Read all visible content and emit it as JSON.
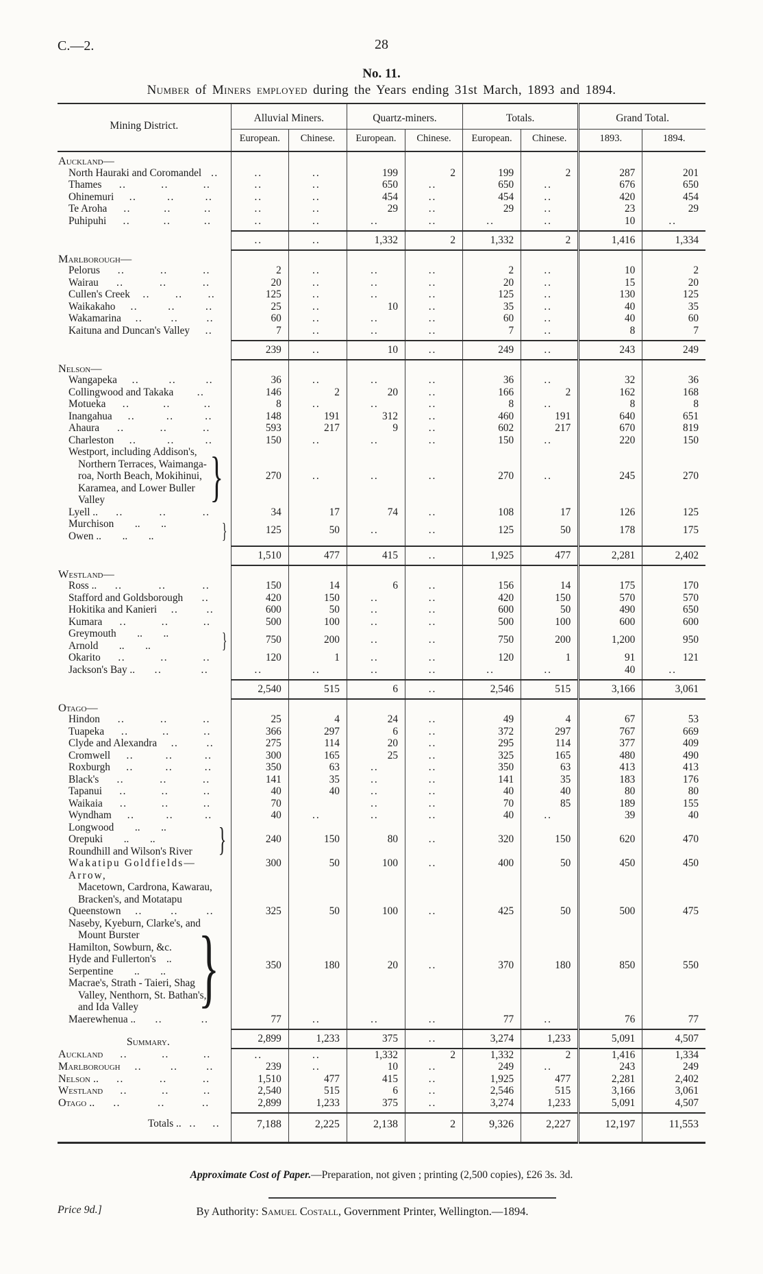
{
  "page": {
    "doc_ref": "C.—2.",
    "page_number": "28",
    "table_no": "No. 11.",
    "subtitle_parts": [
      {
        "text": "Number",
        "sc": true
      },
      {
        "text": " of ",
        "sc": false
      },
      {
        "text": "Miners employed",
        "sc": true
      },
      {
        "text": " during the Years ending 31st March, 1893 and 1894.",
        "sc": false
      }
    ]
  },
  "glyphs": {
    "leader_dots": "..",
    "brace": "}"
  },
  "table": {
    "district_header": "Mining District.",
    "groups": [
      {
        "label": "Alluvial Miners.",
        "cols": [
          "European.",
          "Chinese."
        ]
      },
      {
        "label": "Quartz-miners.",
        "cols": [
          "European.",
          "Chinese."
        ]
      },
      {
        "label": "Totals.",
        "cols": [
          "European.",
          "Chinese."
        ]
      },
      {
        "label": "Grand Total.",
        "cols": [
          "1893.",
          "1894."
        ]
      }
    ],
    "sections": [
      {
        "name": "Auckland—",
        "rows": [
          {
            "label": "North Hauraki and Coromandel",
            "dots": 1,
            "cells": [
              "..",
              "..",
              "199",
              "2",
              "199",
              "2",
              "287",
              "201"
            ]
          },
          {
            "label": "Thames",
            "dots": 3,
            "cells": [
              "..",
              "..",
              "650",
              "..",
              "650",
              "..",
              "676",
              "650"
            ]
          },
          {
            "label": "Ohinemuri",
            "dots": 3,
            "cells": [
              "..",
              "..",
              "454",
              "..",
              "454",
              "..",
              "420",
              "454"
            ]
          },
          {
            "label": "Te Aroha",
            "dots": 3,
            "cells": [
              "..",
              "..",
              "29",
              "..",
              "29",
              "..",
              "23",
              "29"
            ]
          },
          {
            "label": "Puhipuhi",
            "dots": 3,
            "cells": [
              "..",
              "..",
              "..",
              "..",
              "..",
              "..",
              "10",
              ".."
            ]
          }
        ],
        "subtotal": [
          "..",
          "..",
          "1,332",
          "2",
          "1,332",
          "2",
          "1,416",
          "1,334"
        ]
      },
      {
        "name": "Marlborough—",
        "rows": [
          {
            "label": "Pelorus",
            "dots": 3,
            "cells": [
              "2",
              "..",
              "..",
              "..",
              "2",
              "..",
              "10",
              "2"
            ]
          },
          {
            "label": "Wairau",
            "dots": 3,
            "cells": [
              "20",
              "..",
              "..",
              "..",
              "20",
              "..",
              "15",
              "20"
            ]
          },
          {
            "label": "Cullen's Creek",
            "dots": 3,
            "cells": [
              "125",
              "..",
              "..",
              "..",
              "125",
              "..",
              "130",
              "125"
            ]
          },
          {
            "label": "Waikakaho",
            "dots": 3,
            "cells": [
              "25",
              "..",
              "10",
              "..",
              "35",
              "..",
              "40",
              "35"
            ]
          },
          {
            "label": "Wakamarina",
            "dots": 3,
            "cells": [
              "60",
              "..",
              "..",
              "..",
              "60",
              "..",
              "40",
              "60"
            ]
          },
          {
            "label": "Kaituna and Duncan's Valley",
            "dots": 1,
            "cells": [
              "7",
              "..",
              "..",
              "..",
              "7",
              "..",
              "8",
              "7"
            ]
          }
        ],
        "subtotal": [
          "239",
          "..",
          "10",
          "..",
          "249",
          "..",
          "243",
          "249"
        ]
      },
      {
        "name": "Nelson—",
        "rows": [
          {
            "label": "Wangapeka",
            "dots": 3,
            "cells": [
              "36",
              "..",
              "..",
              "..",
              "36",
              "..",
              "32",
              "36"
            ]
          },
          {
            "label": "Collingwood and Takaka",
            "dots": 1,
            "cells": [
              "146",
              "2",
              "20",
              "..",
              "166",
              "2",
              "162",
              "168"
            ]
          },
          {
            "label": "Motueka",
            "dots": 3,
            "cells": [
              "8",
              "..",
              "..",
              "..",
              "8",
              "..",
              "8",
              "8"
            ]
          },
          {
            "label": "Inangahua",
            "dots": 3,
            "cells": [
              "148",
              "191",
              "312",
              "..",
              "460",
              "191",
              "640",
              "651"
            ]
          },
          {
            "label": "Ahaura",
            "dots": 3,
            "cells": [
              "593",
              "217",
              "9",
              "..",
              "602",
              "217",
              "670",
              "819"
            ]
          },
          {
            "label": "Charleston",
            "dots": 3,
            "cells": [
              "150",
              "..",
              "..",
              "..",
              "150",
              "..",
              "220",
              "150"
            ]
          },
          {
            "lines": [
              {
                "t": "Westport, including Addison's,",
                "i": 0
              },
              {
                "t": "Northern Terraces, Waimanga-",
                "i": 1
              },
              {
                "t": "roa, North Beach, Mokihinui,",
                "i": 1
              },
              {
                "t": "Karamea, and Lower Buller",
                "i": 1
              },
              {
                "t": "Valley",
                "i": 1
              }
            ],
            "brace": true,
            "cells": [
              "270",
              "..",
              "..",
              "..",
              "270",
              "..",
              "245",
              "270"
            ]
          },
          {
            "label": "Lyell ..",
            "dots": 3,
            "cells": [
              "34",
              "17",
              "74",
              "..",
              "108",
              "17",
              "126",
              "125"
            ]
          },
          {
            "lines": [
              {
                "t": "Murchison  ..  ..",
                "i": 0
              },
              {
                "t": "Owen ..  ..  ..",
                "i": 0
              }
            ],
            "brace": true,
            "cells": [
              "125",
              "50",
              "..",
              "..",
              "125",
              "50",
              "178",
              "175"
            ]
          }
        ],
        "subtotal": [
          "1,510",
          "477",
          "415",
          "..",
          "1,925",
          "477",
          "2,281",
          "2,402"
        ]
      },
      {
        "name": "Westland—",
        "rows": [
          {
            "label": "Ross ..",
            "dots": 3,
            "cells": [
              "150",
              "14",
              "6",
              "..",
              "156",
              "14",
              "175",
              "170"
            ]
          },
          {
            "label": "Stafford and Goldsborough",
            "dots": 1,
            "cells": [
              "420",
              "150",
              "..",
              "..",
              "420",
              "150",
              "570",
              "570"
            ]
          },
          {
            "label": "Hokitika and Kanieri",
            "dots": 2,
            "cells": [
              "600",
              "50",
              "..",
              "..",
              "600",
              "50",
              "490",
              "650"
            ]
          },
          {
            "label": "Kumara",
            "dots": 3,
            "cells": [
              "500",
              "100",
              "..",
              "..",
              "500",
              "100",
              "600",
              "600"
            ]
          },
          {
            "lines": [
              {
                "t": "Greymouth  ..  ..",
                "i": 0
              },
              {
                "t": "Arnold  ..  ..",
                "i": 0
              }
            ],
            "brace": true,
            "cells": [
              "750",
              "200",
              "..",
              "..",
              "750",
              "200",
              "1,200",
              "950"
            ]
          },
          {
            "label": "Okarito",
            "dots": 3,
            "cells": [
              "120",
              "1",
              "..",
              "..",
              "120",
              "1",
              "91",
              "121"
            ]
          },
          {
            "label": "Jackson's Bay ..",
            "dots": 2,
            "cells": [
              "..",
              "..",
              "..",
              "..",
              "..",
              "..",
              "40",
              ".."
            ]
          }
        ],
        "subtotal": [
          "2,540",
          "515",
          "6",
          "..",
          "2,546",
          "515",
          "3,166",
          "3,061"
        ]
      },
      {
        "name": "Otago—",
        "rows": [
          {
            "label": "Hindon",
            "dots": 3,
            "cells": [
              "25",
              "4",
              "24",
              "..",
              "49",
              "4",
              "67",
              "53"
            ]
          },
          {
            "label": "Tuapeka",
            "dots": 3,
            "cells": [
              "366",
              "297",
              "6",
              "..",
              "372",
              "297",
              "767",
              "669"
            ]
          },
          {
            "label": "Clyde and Alexandra",
            "dots": 2,
            "cells": [
              "275",
              "114",
              "20",
              "..",
              "295",
              "114",
              "377",
              "409"
            ]
          },
          {
            "label": "Cromwell",
            "dots": 3,
            "cells": [
              "300",
              "165",
              "25",
              "..",
              "325",
              "165",
              "480",
              "490"
            ]
          },
          {
            "label": "Roxburgh",
            "dots": 3,
            "cells": [
              "350",
              "63",
              "..",
              "..",
              "350",
              "63",
              "413",
              "413"
            ]
          },
          {
            "label": "Black's",
            "dots": 3,
            "cells": [
              "141",
              "35",
              "..",
              "..",
              "141",
              "35",
              "183",
              "176"
            ]
          },
          {
            "label": "Tapanui",
            "dots": 3,
            "cells": [
              "40",
              "40",
              "..",
              "..",
              "40",
              "40",
              "80",
              "80"
            ]
          },
          {
            "label": "Waikaia",
            "dots": 3,
            "cells": [
              "70",
              "",
              "..",
              "..",
              "70",
              "85",
              "189",
              "155"
            ]
          },
          {
            "label": "Wyndham",
            "dots": 3,
            "cells": [
              "40",
              "..",
              "..",
              "..",
              "40",
              "..",
              "39",
              "40"
            ]
          },
          {
            "lines": [
              {
                "t": "Longwood  ..  ..",
                "i": 0
              },
              {
                "t": "Orepuki  ..  ..",
                "i": 0
              },
              {
                "t": "Roundhill and Wilson's River",
                "i": 0
              }
            ],
            "brace": true,
            "cells": [
              "240",
              "150",
              "80",
              "..",
              "320",
              "150",
              "620",
              "470"
            ]
          },
          {
            "lines": [
              {
                "t": "Wakatipu Goldfields—Arrow,",
                "i": 0,
                "ls": true
              },
              {
                "t": "Macetown, Cardrona, Kawarau,",
                "i": 1
              },
              {
                "t": "Bracken's, and Motatapu",
                "i": 1
              }
            ],
            "cells": [
              "300",
              "50",
              "100",
              "..",
              "400",
              "50",
              "450",
              "450"
            ]
          },
          {
            "label": "Queenstown",
            "dots": 3,
            "cells": [
              "325",
              "50",
              "100",
              "..",
              "425",
              "50",
              "500",
              "475"
            ]
          },
          {
            "lines": [
              {
                "t": "Naseby, Kyeburn, Clarke's, and",
                "i": 0
              },
              {
                "t": "Mount Burster",
                "i": 1
              },
              {
                "t": "Hamilton, Sowburn, &c.",
                "i": 0
              },
              {
                "t": "Hyde and Fullerton's ..",
                "i": 0
              },
              {
                "t": "Serpentine  ..  ..",
                "i": 0
              },
              {
                "t": "Macrae's, Strath - Taieri, Shag",
                "i": 0
              },
              {
                "t": "Valley, Nenthorn, St. Bathan's,",
                "i": 1
              },
              {
                "t": "and Ida Valley",
                "i": 1
              }
            ],
            "brace": true,
            "cells": [
              "350",
              "180",
              "20",
              "..",
              "370",
              "180",
              "850",
              "550"
            ]
          },
          {
            "label": "Maerewhenua ..",
            "dots": 2,
            "cells": [
              "77",
              "..",
              "..",
              "..",
              "77",
              "..",
              "76",
              "77"
            ]
          }
        ],
        "subtotal": [
          "2,899",
          "1,233",
          "375",
          "..",
          "3,274",
          "1,233",
          "5,091",
          "4,507"
        ]
      }
    ],
    "summary": {
      "heading": "Summary.",
      "rows": [
        {
          "label": "Auckland",
          "dots": 3,
          "cells": [
            "..",
            "..",
            "1,332",
            "2",
            "1,332",
            "2",
            "1,416",
            "1,334"
          ]
        },
        {
          "label": "Marlborough",
          "dots": 3,
          "cells": [
            "239",
            "..",
            "10",
            "..",
            "249",
            "..",
            "243",
            "249"
          ]
        },
        {
          "label": "Nelson ..",
          "dots": 3,
          "cells": [
            "1,510",
            "477",
            "415",
            "..",
            "1,925",
            "477",
            "2,281",
            "2,402"
          ]
        },
        {
          "label": "Westland",
          "dots": 3,
          "cells": [
            "2,540",
            "515",
            "6",
            "..",
            "2,546",
            "515",
            "3,166",
            "3,061"
          ]
        },
        {
          "label": "Otago ..",
          "dots": 3,
          "cells": [
            "2,899",
            "1,233",
            "375",
            "..",
            "3,274",
            "1,233",
            "5,091",
            "4,507"
          ]
        }
      ]
    },
    "totals": {
      "label": "Totals ..",
      "dots": 2,
      "cells": [
        "7,188",
        "2,225",
        "2,138",
        "2",
        "9,326",
        "2,227",
        "12,197",
        "11,553"
      ]
    }
  },
  "footer": {
    "cost_label": "Approximate Cost of Paper.",
    "cost_rest": "—Preparation, not given ; printing (2,500 copies), £26 3s. 3d.",
    "price": "Price 9d.]",
    "authority_prefix": "By Authority: ",
    "authority_name": "Samuel Costall",
    "authority_rest": ", Government Printer, Wellington.—1894."
  }
}
